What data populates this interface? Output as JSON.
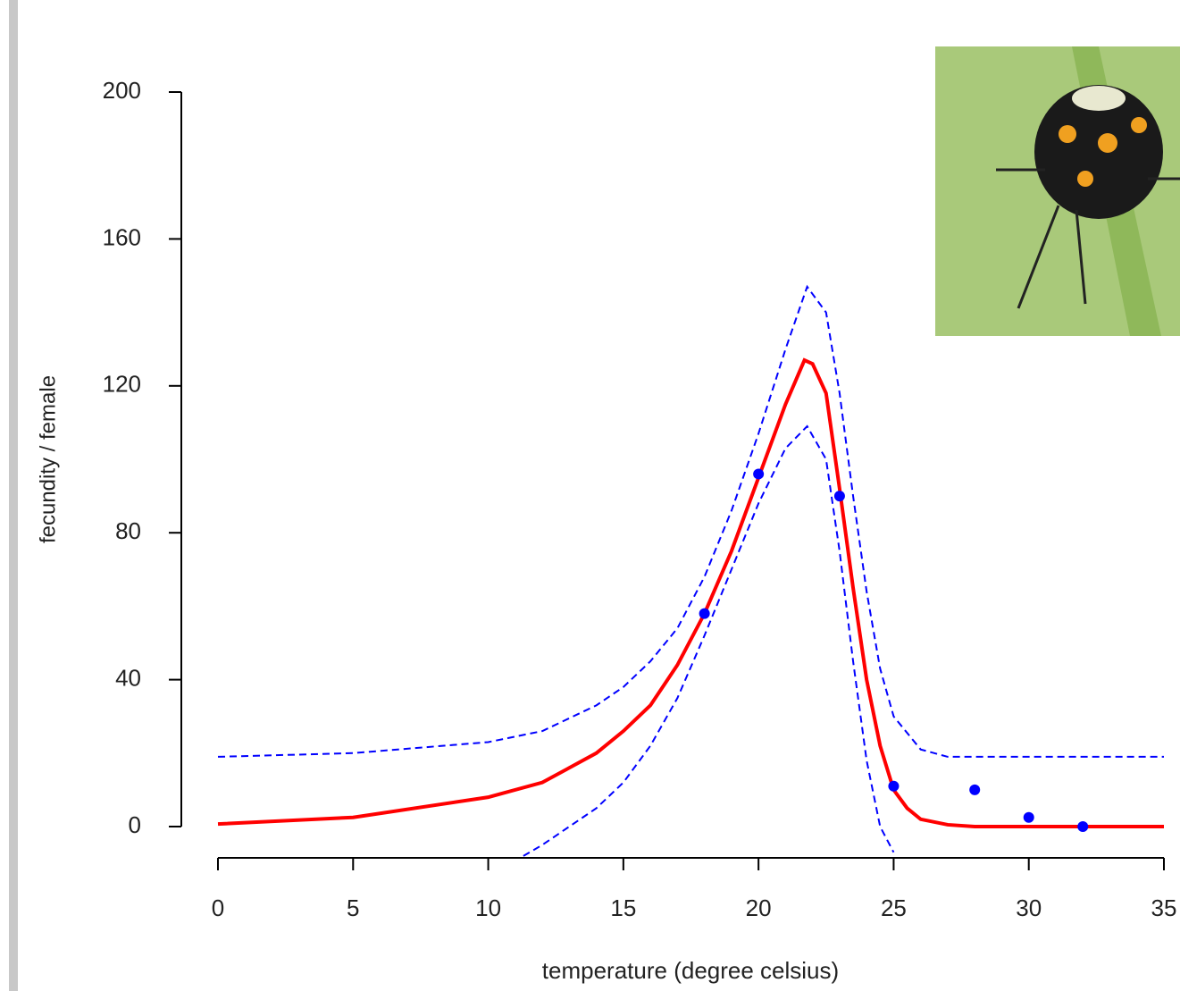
{
  "chart_data": {
    "type": "scatter",
    "xlabel": "temperature (degree celsius)",
    "ylabel": "fecundity / female",
    "xlim": [
      0,
      35
    ],
    "xticks": [
      0,
      5,
      10,
      15,
      20,
      25,
      30,
      35
    ],
    "ylim": [
      0,
      200
    ],
    "yticks": [
      0,
      40,
      80,
      120,
      160,
      200
    ],
    "points": {
      "color": "#0000ff",
      "x": [
        18,
        20,
        23,
        25,
        28,
        30,
        32
      ],
      "values": [
        58,
        96,
        90,
        11,
        10,
        2.5,
        0
      ]
    },
    "lines": [
      {
        "color": "#ff0000",
        "dashed": false,
        "x": [
          0,
          5,
          10,
          12,
          14,
          15,
          16,
          17,
          18,
          19,
          20,
          21,
          21.7,
          22,
          22.5,
          23,
          23.5,
          24,
          24.5,
          25,
          25.5,
          26,
          27,
          28,
          35
        ],
        "values": [
          0.7,
          2.5,
          8,
          12,
          20,
          26,
          33,
          44,
          58,
          75,
          95,
          115,
          127,
          126,
          118,
          92,
          65,
          40,
          22,
          10,
          5,
          2,
          0.5,
          0,
          0
        ]
      },
      {
        "color": "#0000ff",
        "dashed": true,
        "x": [
          0,
          5,
          10,
          12,
          14,
          15,
          16,
          17,
          18,
          19,
          20,
          21,
          21.8,
          22.5,
          23,
          23.5,
          24,
          24.5,
          25,
          26,
          27,
          35
        ],
        "values": [
          19,
          20,
          23,
          26,
          33,
          38,
          45,
          54,
          68,
          86,
          107,
          130,
          147,
          140,
          118,
          90,
          64,
          43,
          30,
          21,
          19,
          19
        ]
      },
      {
        "color": "#0000ff",
        "dashed": true,
        "x": [
          11.3,
          12,
          14,
          15,
          16,
          17,
          18,
          19,
          20,
          21,
          21.8,
          22.5,
          23,
          23.5,
          24,
          24.5,
          25
        ],
        "values": [
          -8,
          -5,
          5,
          12,
          22,
          35,
          52,
          70,
          88,
          103,
          109,
          100,
          75,
          45,
          18,
          0,
          -7
        ]
      }
    ]
  }
}
